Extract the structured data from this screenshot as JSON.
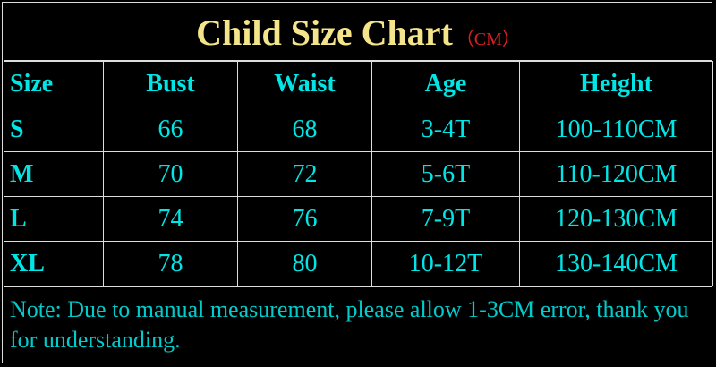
{
  "header": {
    "title": "Child Size Chart",
    "unit": "（CM）"
  },
  "table": {
    "columns": [
      "Size",
      "Bust",
      "Waist",
      "Age",
      "Height"
    ],
    "rows": [
      [
        "S",
        "66",
        "68",
        "3-4T",
        "100-110CM"
      ],
      [
        "M",
        "70",
        "72",
        "5-6T",
        "110-120CM"
      ],
      [
        "L",
        "74",
        "76",
        "7-9T",
        "120-130CM"
      ],
      [
        "XL",
        "78",
        "80",
        "10-12T",
        "130-140CM"
      ]
    ]
  },
  "note": "Note: Due to manual measurement, please allow 1-3CM error, thank you for understanding."
}
